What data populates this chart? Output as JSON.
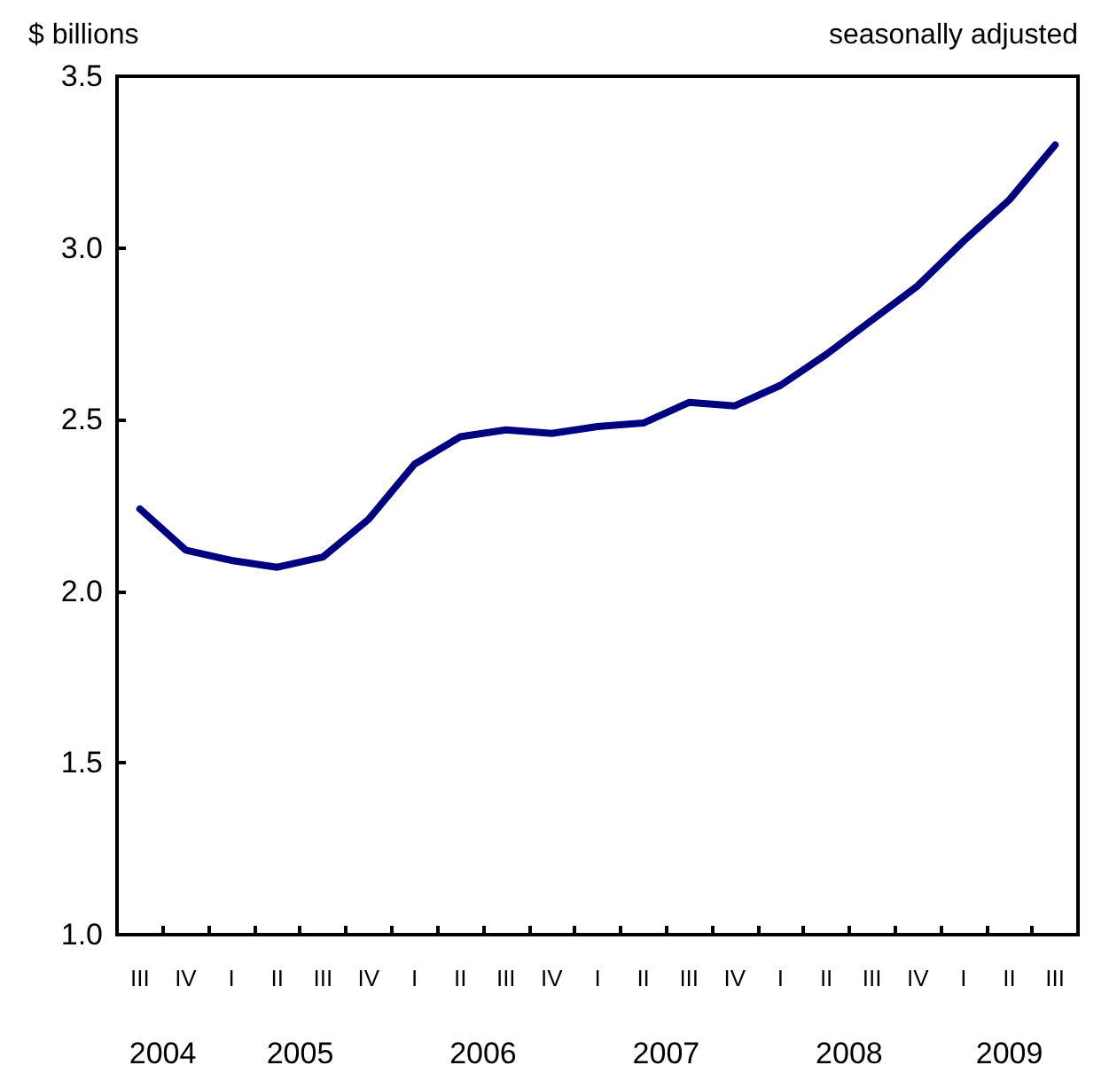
{
  "chart_data": {
    "type": "line",
    "ylabel": "$ billions",
    "subtitle": "seasonally adjusted",
    "categories": [
      "III",
      "IV",
      "I",
      "II",
      "III",
      "IV",
      "I",
      "II",
      "III",
      "IV",
      "I",
      "II",
      "III",
      "IV",
      "I",
      "II",
      "III",
      "IV",
      "I",
      "II",
      "III"
    ],
    "series": [
      {
        "color": "#000080",
        "values": [
          2.24,
          2.12,
          2.09,
          2.07,
          2.1,
          2.21,
          2.37,
          2.45,
          2.47,
          2.46,
          2.48,
          2.49,
          2.55,
          2.54,
          2.6,
          2.69,
          2.79,
          2.89,
          3.02,
          3.14,
          3.3
        ]
      }
    ],
    "annotations": [
      "2004",
      "2005",
      "2006",
      "2007",
      "2008",
      "2009"
    ],
    "ylim": [
      1.0,
      3.5
    ],
    "yticks": [
      {
        "value": 1,
        "label": "1.0"
      },
      {
        "value": 1.5,
        "label": "1.5"
      },
      {
        "value": 2,
        "label": "2.0"
      },
      {
        "value": 2.5,
        "label": "2.5"
      },
      {
        "value": 3,
        "label": "3.0"
      },
      {
        "value": 3.5,
        "label": "3.5"
      }
    ],
    "grid": false,
    "marker": "none",
    "line_style": "solid"
  }
}
